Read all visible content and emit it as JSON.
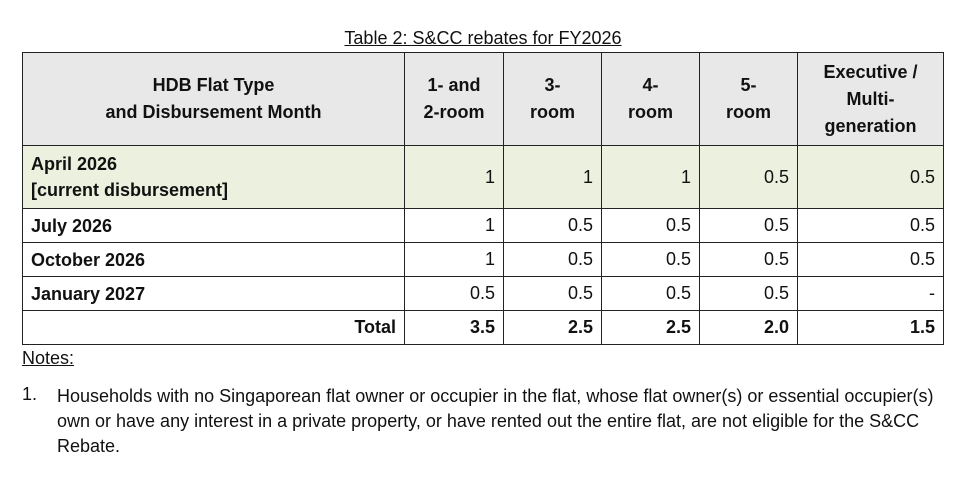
{
  "caption": "Table 2: S&CC rebates for FY2026",
  "table": {
    "header": [
      [
        "HDB Flat Type",
        "and Disbursement Month"
      ],
      [
        "1- and",
        "2-room"
      ],
      [
        "3-",
        "room"
      ],
      [
        "4-",
        "room"
      ],
      [
        "5-",
        "room"
      ],
      [
        "Executive /",
        "Multi-",
        "generation"
      ]
    ],
    "rows": [
      {
        "label": [
          "April 2026",
          "[current disbursement]"
        ],
        "values": [
          "1",
          "1",
          "1",
          "0.5",
          "0.5"
        ]
      },
      {
        "label": [
          "July 2026"
        ],
        "values": [
          "1",
          "0.5",
          "0.5",
          "0.5",
          "0.5"
        ]
      },
      {
        "label": [
          "October 2026"
        ],
        "values": [
          "1",
          "0.5",
          "0.5",
          "0.5",
          "0.5"
        ]
      },
      {
        "label": [
          "January 2027"
        ],
        "values": [
          "0.5",
          "0.5",
          "0.5",
          "0.5",
          "-"
        ]
      }
    ],
    "total": {
      "label": "Total",
      "values": [
        "3.5",
        "2.5",
        "2.5",
        "2.0",
        "1.5"
      ]
    }
  },
  "notes": {
    "title": "Notes:",
    "items": [
      {
        "number": "1.",
        "text": "Households with no Singaporean flat owner or occupier in the flat, whose flat owner(s) or essential occupier(s) own or have any interest in a private property, or have rented out the entire flat, are not eligible for the S&CC Rebate."
      }
    ]
  }
}
